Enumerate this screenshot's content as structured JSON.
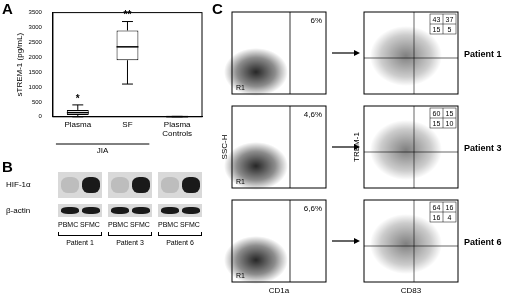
{
  "panel_labels": [
    "A",
    "B",
    "C"
  ],
  "chart_data": {
    "type": "box",
    "y_label": "sTREM-1 (pg/mL)",
    "categories": [
      "Plasma",
      "SF",
      "Plasma Controls"
    ],
    "groups": [
      {
        "label": "JIA",
        "categories": [
          "Plasma",
          "SF"
        ]
      }
    ],
    "boxes": [
      {
        "min": 0,
        "q1": 60,
        "median": 140,
        "q3": 230,
        "max": 400
      },
      {
        "min": 1100,
        "q1": 1900,
        "median": 2350,
        "q3": 2900,
        "max": 3200
      },
      {
        "min": 0,
        "q1": 0,
        "median": 5,
        "q3": 10,
        "max": 15
      }
    ],
    "annotations": [
      {
        "category": "Plasma",
        "text": "*"
      },
      {
        "category": "SF",
        "text": "**"
      }
    ],
    "ylim": [
      0,
      3500
    ],
    "yticks": [
      0,
      500,
      1000,
      1500,
      2000,
      2500,
      3000,
      3500
    ],
    "grid": false,
    "color": "#ffffff"
  },
  "blot": {
    "rows": [
      "HIF-1α",
      "β-actin"
    ],
    "lanes": [
      "PBMC",
      "SFMC"
    ],
    "patients": [
      "Patient 1",
      "Patient 3",
      "Patient 6"
    ]
  },
  "flow": {
    "left_x_label": "CD1a",
    "left_y_label": "SSC-H",
    "right_x_label": "CD83",
    "right_y_label": "TREM-1",
    "rows": [
      {
        "patient": "Patient 1",
        "gate_percent": "6%",
        "gate": "R1",
        "quadrants": [
          43,
          37,
          15,
          5
        ]
      },
      {
        "patient": "Patient 3",
        "gate_percent": "4,6%",
        "gate": "R1",
        "quadrants": [
          60,
          15,
          15,
          10
        ]
      },
      {
        "patient": "Patient 6",
        "gate_percent": "6,6%",
        "gate": "R1",
        "quadrants": [
          64,
          16,
          16,
          4
        ]
      }
    ]
  }
}
